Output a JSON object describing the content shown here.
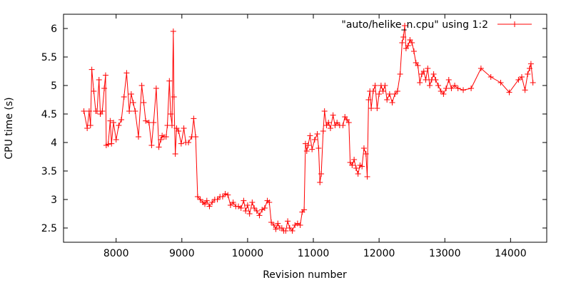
{
  "chart_data": {
    "type": "line",
    "xlabel": "Revision number",
    "ylabel": "CPU time (s)",
    "xlim": [
      7200,
      14550
    ],
    "ylim": [
      2.25,
      6.25
    ],
    "xticks": [
      8000,
      9000,
      10000,
      11000,
      12000,
      13000,
      14000
    ],
    "yticks": [
      2.5,
      3,
      3.5,
      4,
      4.5,
      5,
      5.5,
      6
    ],
    "ytick_labels": [
      "2.5",
      "3",
      "3.5",
      "4",
      "4.5",
      "5",
      "5.5",
      "6"
    ],
    "grid": false,
    "legend_position": "top-right",
    "series": [
      {
        "name": "\"auto/helike_n.cpu\" using 1:2",
        "color": "#ff0000",
        "marker": "plus",
        "points": [
          [
            7510,
            4.55
          ],
          [
            7560,
            4.25
          ],
          [
            7590,
            4.55
          ],
          [
            7610,
            4.3
          ],
          [
            7630,
            5.28
          ],
          [
            7660,
            4.9
          ],
          [
            7690,
            4.55
          ],
          [
            7710,
            4.55
          ],
          [
            7740,
            5.1
          ],
          [
            7760,
            4.5
          ],
          [
            7790,
            4.55
          ],
          [
            7820,
            4.95
          ],
          [
            7840,
            5.18
          ],
          [
            7850,
            3.95
          ],
          [
            7880,
            3.97
          ],
          [
            7910,
            4.38
          ],
          [
            7930,
            3.98
          ],
          [
            7960,
            4.35
          ],
          [
            8000,
            4.05
          ],
          [
            8040,
            4.3
          ],
          [
            8080,
            4.4
          ],
          [
            8120,
            4.8
          ],
          [
            8160,
            5.22
          ],
          [
            8200,
            4.55
          ],
          [
            8230,
            4.85
          ],
          [
            8260,
            4.7
          ],
          [
            8290,
            4.55
          ],
          [
            8340,
            4.1
          ],
          [
            8390,
            5.0
          ],
          [
            8420,
            4.7
          ],
          [
            8450,
            4.38
          ],
          [
            8500,
            4.35
          ],
          [
            8540,
            3.95
          ],
          [
            8570,
            4.35
          ],
          [
            8610,
            4.95
          ],
          [
            8650,
            3.92
          ],
          [
            8680,
            4.05
          ],
          [
            8700,
            4.12
          ],
          [
            8730,
            4.1
          ],
          [
            8760,
            4.1
          ],
          [
            8780,
            4.3
          ],
          [
            8810,
            5.08
          ],
          [
            8830,
            4.5
          ],
          [
            8850,
            4.3
          ],
          [
            8870,
            5.95
          ],
          [
            8880,
            4.8
          ],
          [
            8900,
            3.8
          ],
          [
            8920,
            4.25
          ],
          [
            8950,
            4.2
          ],
          [
            8990,
            3.98
          ],
          [
            9030,
            4.25
          ],
          [
            9060,
            4.0
          ],
          [
            9100,
            4.0
          ],
          [
            9150,
            4.1
          ],
          [
            9180,
            4.42
          ],
          [
            9210,
            4.1
          ],
          [
            9240,
            3.05
          ],
          [
            9280,
            3.0
          ],
          [
            9320,
            2.95
          ],
          [
            9350,
            2.92
          ],
          [
            9380,
            2.98
          ],
          [
            9420,
            2.88
          ],
          [
            9460,
            2.95
          ],
          [
            9500,
            3.0
          ],
          [
            9540,
            3.0
          ],
          [
            9580,
            3.05
          ],
          [
            9620,
            3.05
          ],
          [
            9660,
            3.1
          ],
          [
            9700,
            3.08
          ],
          [
            9740,
            2.9
          ],
          [
            9780,
            2.95
          ],
          [
            9820,
            2.88
          ],
          [
            9860,
            2.88
          ],
          [
            9900,
            2.85
          ],
          [
            9940,
            2.98
          ],
          [
            9970,
            2.8
          ],
          [
            10000,
            2.9
          ],
          [
            10030,
            2.75
          ],
          [
            10070,
            2.95
          ],
          [
            10100,
            2.85
          ],
          [
            10140,
            2.8
          ],
          [
            10180,
            2.72
          ],
          [
            10220,
            2.82
          ],
          [
            10260,
            2.85
          ],
          [
            10300,
            2.98
          ],
          [
            10330,
            2.95
          ],
          [
            10360,
            2.6
          ],
          [
            10400,
            2.55
          ],
          [
            10430,
            2.48
          ],
          [
            10460,
            2.58
          ],
          [
            10490,
            2.5
          ],
          [
            10520,
            2.5
          ],
          [
            10550,
            2.45
          ],
          [
            10580,
            2.45
          ],
          [
            10610,
            2.62
          ],
          [
            10640,
            2.5
          ],
          [
            10680,
            2.45
          ],
          [
            10720,
            2.55
          ],
          [
            10760,
            2.58
          ],
          [
            10800,
            2.55
          ],
          [
            10830,
            2.78
          ],
          [
            10860,
            2.82
          ],
          [
            10880,
            3.98
          ],
          [
            10900,
            3.85
          ],
          [
            10920,
            3.95
          ],
          [
            10950,
            4.12
          ],
          [
            10980,
            3.88
          ],
          [
            11020,
            4.05
          ],
          [
            11060,
            4.15
          ],
          [
            11080,
            3.9
          ],
          [
            11100,
            3.3
          ],
          [
            11120,
            3.45
          ],
          [
            11150,
            4.2
          ],
          [
            11170,
            4.55
          ],
          [
            11200,
            4.3
          ],
          [
            11230,
            4.35
          ],
          [
            11260,
            4.25
          ],
          [
            11300,
            4.48
          ],
          [
            11330,
            4.3
          ],
          [
            11360,
            4.35
          ],
          [
            11400,
            4.3
          ],
          [
            11450,
            4.3
          ],
          [
            11480,
            4.45
          ],
          [
            11510,
            4.4
          ],
          [
            11540,
            4.35
          ],
          [
            11560,
            3.65
          ],
          [
            11590,
            3.6
          ],
          [
            11620,
            3.7
          ],
          [
            11650,
            3.55
          ],
          [
            11680,
            3.45
          ],
          [
            11710,
            3.6
          ],
          [
            11740,
            3.58
          ],
          [
            11770,
            3.9
          ],
          [
            11800,
            3.8
          ],
          [
            11820,
            3.4
          ],
          [
            11840,
            4.75
          ],
          [
            11860,
            4.9
          ],
          [
            11880,
            4.6
          ],
          [
            11910,
            4.9
          ],
          [
            11940,
            5.0
          ],
          [
            11970,
            4.6
          ],
          [
            12000,
            4.85
          ],
          [
            12030,
            5.0
          ],
          [
            12060,
            4.9
          ],
          [
            12090,
            5.0
          ],
          [
            12120,
            4.75
          ],
          [
            12160,
            4.85
          ],
          [
            12200,
            4.7
          ],
          [
            12240,
            4.85
          ],
          [
            12280,
            4.9
          ],
          [
            12320,
            5.2
          ],
          [
            12350,
            5.75
          ],
          [
            12370,
            5.85
          ],
          [
            12390,
            6.05
          ],
          [
            12410,
            5.65
          ],
          [
            12440,
            5.7
          ],
          [
            12470,
            5.8
          ],
          [
            12500,
            5.75
          ],
          [
            12530,
            5.6
          ],
          [
            12560,
            5.4
          ],
          [
            12590,
            5.35
          ],
          [
            12620,
            5.05
          ],
          [
            12650,
            5.2
          ],
          [
            12680,
            5.25
          ],
          [
            12710,
            5.1
          ],
          [
            12740,
            5.3
          ],
          [
            12770,
            5.0
          ],
          [
            12800,
            5.1
          ],
          [
            12830,
            5.2
          ],
          [
            12860,
            5.1
          ],
          [
            12900,
            5.0
          ],
          [
            12940,
            4.9
          ],
          [
            12980,
            4.85
          ],
          [
            13020,
            4.95
          ],
          [
            13060,
            5.1
          ],
          [
            13100,
            4.95
          ],
          [
            13150,
            5.0
          ],
          [
            13200,
            4.95
          ],
          [
            13280,
            4.92
          ],
          [
            13400,
            4.95
          ],
          [
            13550,
            5.3
          ],
          [
            13700,
            5.15
          ],
          [
            13850,
            5.05
          ],
          [
            13980,
            4.88
          ],
          [
            14120,
            5.1
          ],
          [
            14170,
            5.15
          ],
          [
            14220,
            4.92
          ],
          [
            14260,
            5.2
          ],
          [
            14290,
            5.3
          ],
          [
            14310,
            5.38
          ],
          [
            14340,
            5.05
          ]
        ]
      }
    ]
  }
}
